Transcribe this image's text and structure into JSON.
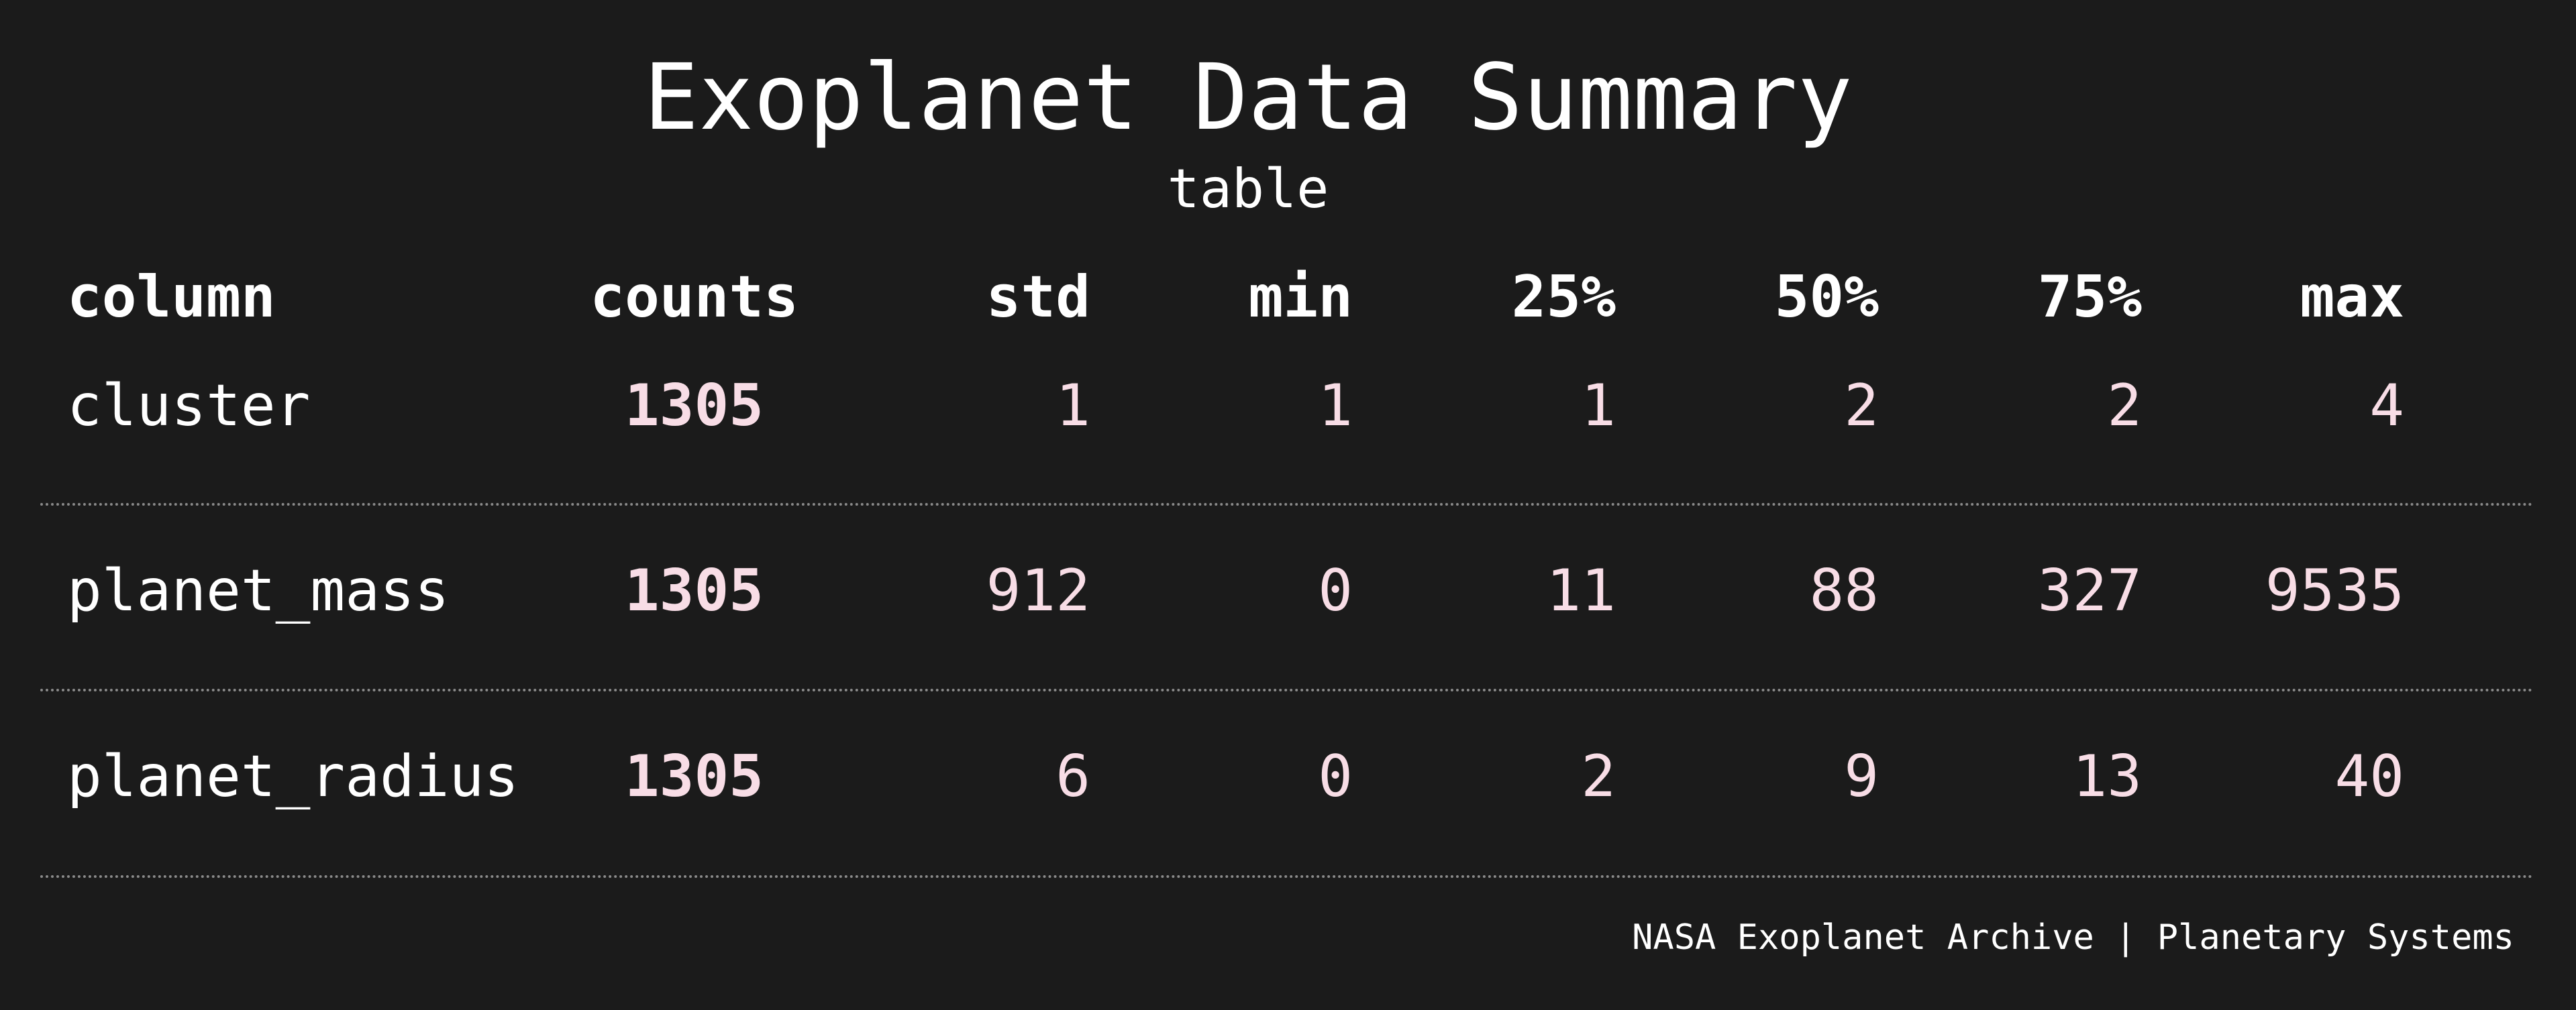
{
  "title": "Exoplanet Data Summary",
  "subtitle": "table",
  "footer": "NASA Exoplanet Archive | Planetary Systems",
  "colors": {
    "background": "#1b1b1b",
    "text": "#ffffff",
    "value": "#f8dde6",
    "divider": "#8a8a8a"
  },
  "chart_data": {
    "type": "table",
    "title": "Exoplanet Data Summary",
    "subtitle": "table",
    "columns": [
      "column",
      "counts",
      "std",
      "min",
      "25%",
      "50%",
      "75%",
      "max"
    ],
    "rows": [
      {
        "column": "cluster",
        "counts": "1305",
        "std": "1",
        "min": "1",
        "25%": "1",
        "50%": "2",
        "75%": "2",
        "max": "4"
      },
      {
        "column": "planet_mass",
        "counts": "1305",
        "std": "912",
        "min": "0",
        "25%": "11",
        "50%": "88",
        "75%": "327",
        "max": "9535"
      },
      {
        "column": "planet_radius",
        "counts": "1305",
        "std": "6",
        "min": "0",
        "25%": "2",
        "50%": "9",
        "75%": "13",
        "max": "40"
      }
    ]
  }
}
